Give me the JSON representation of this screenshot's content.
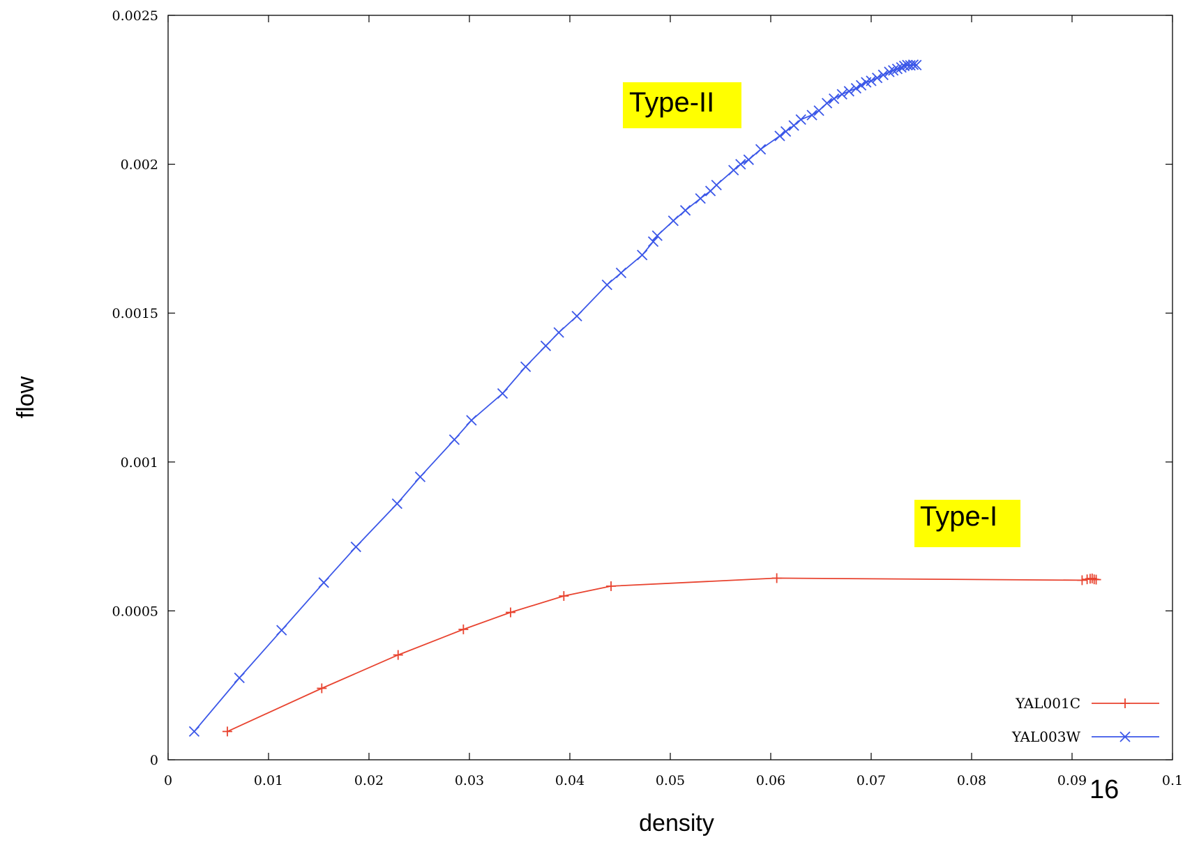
{
  "chart_data": {
    "type": "line",
    "xlabel": "density",
    "ylabel": "flow",
    "xlim": [
      0,
      0.1
    ],
    "ylim": [
      0,
      0.0025
    ],
    "x_ticks": [
      "0",
      "0.01",
      "0.02",
      "0.03",
      "0.04",
      "0.05",
      "0.06",
      "0.07",
      "0.08",
      "0.09",
      "0.1"
    ],
    "y_ticks": [
      "0",
      "0.0005",
      "0.001",
      "0.0015",
      "0.002",
      "0.0025"
    ],
    "legend_position": "bottom-right",
    "grid": false,
    "series": [
      {
        "name": "YAL001C",
        "color": "#e8432f",
        "marker": "plus",
        "x": [
          0.0059,
          0.0153,
          0.0229,
          0.0294,
          0.0341,
          0.0394,
          0.0441,
          0.0606,
          0.091,
          0.0915,
          0.0918,
          0.092,
          0.0922,
          0.0924
        ],
        "y": [
          9.5e-05,
          0.00024,
          0.000352,
          0.000438,
          0.000495,
          0.00055,
          0.000583,
          0.00061,
          0.000603,
          0.000606,
          0.000608,
          0.000609,
          0.000606,
          0.000605
        ]
      },
      {
        "name": "YAL003W",
        "color": "#3b57e8",
        "marker": "cross",
        "x": [
          0.0026,
          0.0071,
          0.0113,
          0.0155,
          0.0187,
          0.0228,
          0.0251,
          0.0285,
          0.0302,
          0.0333,
          0.0356,
          0.0376,
          0.0389,
          0.0407,
          0.0437,
          0.0451,
          0.0472,
          0.0483,
          0.0487,
          0.0503,
          0.0515,
          0.053,
          0.054,
          0.0546,
          0.0563,
          0.057,
          0.0578,
          0.059,
          0.0609,
          0.0615,
          0.0623,
          0.063,
          0.0641,
          0.0648,
          0.0656,
          0.0663,
          0.0671,
          0.0678,
          0.0685,
          0.069,
          0.0695,
          0.07,
          0.0706,
          0.0712,
          0.0718,
          0.0722,
          0.0726,
          0.073,
          0.0733,
          0.0736,
          0.0739,
          0.0742,
          0.0745
        ],
        "y": [
          9.5e-05,
          0.000275,
          0.000435,
          0.000595,
          0.000715,
          0.00086,
          0.00095,
          0.001075,
          0.00114,
          0.00123,
          0.00132,
          0.00139,
          0.001435,
          0.00149,
          0.001595,
          0.001635,
          0.001695,
          0.00174,
          0.00176,
          0.00181,
          0.001845,
          0.001885,
          0.00191,
          0.00193,
          0.00198,
          0.002,
          0.002015,
          0.00205,
          0.002095,
          0.00211,
          0.00213,
          0.00215,
          0.002165,
          0.00218,
          0.002205,
          0.00222,
          0.002235,
          0.002245,
          0.002255,
          0.002265,
          0.002275,
          0.00228,
          0.00229,
          0.0023,
          0.00231,
          0.002315,
          0.00232,
          0.002325,
          0.00233,
          0.002333,
          0.002332,
          0.002334,
          0.002333
        ]
      }
    ],
    "annotations": [
      {
        "text": "Type-II",
        "highlight": "#ffff00"
      },
      {
        "text": "Type-I",
        "highlight": "#ffff00"
      }
    ]
  },
  "page_number": "16"
}
